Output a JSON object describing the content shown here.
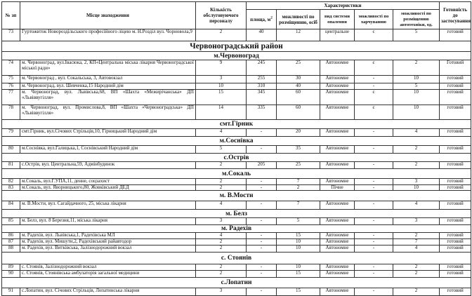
{
  "header": {
    "num": "№ зп",
    "location": "Місце знаходження",
    "staff": "Кількість обслуговуючого персоналу",
    "characteristics": "Характеристики",
    "area": "площа, м",
    "area_sup": "2",
    "capacity": "можливості по розміщенню, осіб",
    "heating": "вид системи опалення",
    "food": "можливості по харчуванню",
    "vehicles": "можливості по розміщенню автотехніки, од.",
    "ready": "Готовність до застосування"
  },
  "rows": [
    {
      "type": "data",
      "num": "73",
      "location": "Гуртожиток Новороздільського професійного ліцею м. Н.Розділ вул. Чорновола,9",
      "staff": "2",
      "area": "40",
      "capacity": "12",
      "heating": "центральне",
      "food": "є",
      "vehicles": "5",
      "ready": "готовий"
    },
    {
      "type": "district",
      "title": "Червоноградський район"
    },
    {
      "type": "section",
      "title": "м.Червоноград"
    },
    {
      "type": "data",
      "num": "74",
      "location": "м. Червоноград, вул.Івасюка, 2, КП«Центральна міська лікарня Червоноградської міської ради»",
      "staff": "9",
      "area": "245",
      "capacity": "25",
      "heating": "Автономне",
      "food": "є",
      "vehicles": "2",
      "ready": "Готовий"
    },
    {
      "type": "data",
      "num": "75",
      "location": "м. Червоноград , вул. Сокальська, 3, Автовокзал",
      "staff": "3",
      "area": "255",
      "capacity": "30",
      "heating": "Автономне",
      "food": "-",
      "vehicles": "10",
      "ready": "готовий"
    },
    {
      "type": "data",
      "num": "76",
      "location": "м. Червоноград, вул. Шевченка,15 Народний дім",
      "staff": "10",
      "area": "310",
      "capacity": "40",
      "heating": "Автономне",
      "food": "-",
      "vehicles": "5",
      "ready": "готовий"
    },
    {
      "type": "data",
      "num": "77",
      "location": "м. Червоноград, вул. Львівська,68, ВП «Шахта «Межирічанська» ДП «Львіввугілля»",
      "staff": "15",
      "area": "345",
      "capacity": "60",
      "heating": "Автономне",
      "food": "є",
      "vehicles": "10",
      "ready": "готовий"
    },
    {
      "type": "data",
      "num": "78",
      "location": "м. Червоноград, вул. Промислова,8, ВП «Шахта «Червоноградська» ДП «Львіввугілля»",
      "staff": "14",
      "area": "335",
      "capacity": "60",
      "heating": "Автономне",
      "food": "є",
      "vehicles": "10",
      "ready": "готовий"
    },
    {
      "type": "section",
      "title": "смт.Гірник"
    },
    {
      "type": "data",
      "num": "79",
      "location": "смт.Гірник, вул.Січових Стрільців,10, Гірницький Народний дім",
      "staff": "4",
      "area": "-",
      "capacity": "20",
      "heating": "Автономне",
      "food": "-",
      "vehicles": "4",
      "ready": "готовий"
    },
    {
      "type": "section",
      "title": "м.Соснівка"
    },
    {
      "type": "data",
      "num": "80",
      "location": "м.Соснівка, вул.Галицька,1, Соснівський Народний дім",
      "staff": "5",
      "area": "-",
      "capacity": "35",
      "heating": "Автономне",
      "food": "-",
      "vehicles": "2",
      "ready": "готовий"
    },
    {
      "type": "section",
      "title": "с.Острів"
    },
    {
      "type": "data",
      "num": "81",
      "location": "с.Острів, вул. Центральна,59, Адмінбудинок",
      "staff": "2",
      "area": "205",
      "capacity": "25",
      "heating": "Автономне",
      "food": "-",
      "vehicles": "2",
      "ready": "готовий"
    },
    {
      "type": "section",
      "title": "м.Сокаль"
    },
    {
      "type": "data",
      "num": "82",
      "location": "м.Сокаль, вул.Г.УПА,11, денне, соцзахист",
      "staff": "2",
      "area": "-",
      "capacity": "7",
      "heating": "Автономне",
      "food": "-",
      "vehicles": "3",
      "ready": "готовий"
    },
    {
      "type": "data",
      "num": "83",
      "location": "м.Сокаль, вул. Яворницького,80, Жовківський ДЕД",
      "staff": "2",
      "area": "-",
      "capacity": "2",
      "heating": "Пічне",
      "food": "-",
      "vehicles": "10",
      "ready": "готовий"
    },
    {
      "type": "section",
      "title": "м. В.Мости"
    },
    {
      "type": "data",
      "num": "84",
      "location": "м. В.Мости, вул. Сагайдачного, 25, міська лікарня",
      "staff": "4",
      "area": "-",
      "capacity": "7",
      "heating": "Автономне",
      "food": "-",
      "vehicles": "4",
      "ready": "готовий"
    },
    {
      "type": "section",
      "title": "м. Белз"
    },
    {
      "type": "data",
      "num": "85",
      "location": "м. Белз, вул. 8 Березня,11, міська лікарня",
      "staff": "3",
      "area": "-",
      "capacity": "5",
      "heating": "Автономне",
      "food": "-",
      "vehicles": "3",
      "ready": "готовий"
    },
    {
      "type": "section",
      "title": "м. Радехів"
    },
    {
      "type": "data",
      "num": "86",
      "location": "м. Радехів, вул. Львівська,1, Радехівська МЛ",
      "staff": "4",
      "area": "-",
      "capacity": "15",
      "heating": "Автономне",
      "food": "-",
      "vehicles": "2",
      "ready": "готовий"
    },
    {
      "type": "data",
      "num": "87",
      "location": "м. Радехів, вул. Мишути,2, Радехівський райавтодор",
      "staff": "2",
      "area": "-",
      "capacity": "10",
      "heating": "Автономне",
      "food": "-",
      "vehicles": "7",
      "ready": "готовий"
    },
    {
      "type": "data",
      "num": "88",
      "location": "м. Радехів, вул. Витківська, Залізнодорожний вокзал",
      "staff": "2",
      "area": "-",
      "capacity": "10",
      "heating": "Автономне",
      "food": "-",
      "vehicles": "4",
      "ready": "готовий"
    },
    {
      "type": "section",
      "title": "с. Стоянів"
    },
    {
      "type": "data",
      "num": "89",
      "location": "с. Стоянів, Залізнодорожний вокзал",
      "staff": "2",
      "area": "-",
      "capacity": "10",
      "heating": "Автономне",
      "food": "-",
      "vehicles": "2",
      "ready": "готовий"
    },
    {
      "type": "data",
      "num": "90",
      "location": "с. Стоянів, Стоянівська амбулаторія загальної медицини",
      "staff": "2",
      "area": "-",
      "capacity": "15",
      "heating": "Автономне",
      "food": "-",
      "vehicles": "2",
      "ready": "готовий"
    },
    {
      "type": "section",
      "title": "с.Лопатин"
    },
    {
      "type": "data",
      "num": "91",
      "location": "с.Лопатин, вул. Січових Стрільців, Лопатинська лікарня",
      "staff": "3",
      "area": "-",
      "capacity": "15",
      "heating": "Автономне",
      "food": "-",
      "vehicles": "2",
      "ready": "готовий"
    }
  ]
}
